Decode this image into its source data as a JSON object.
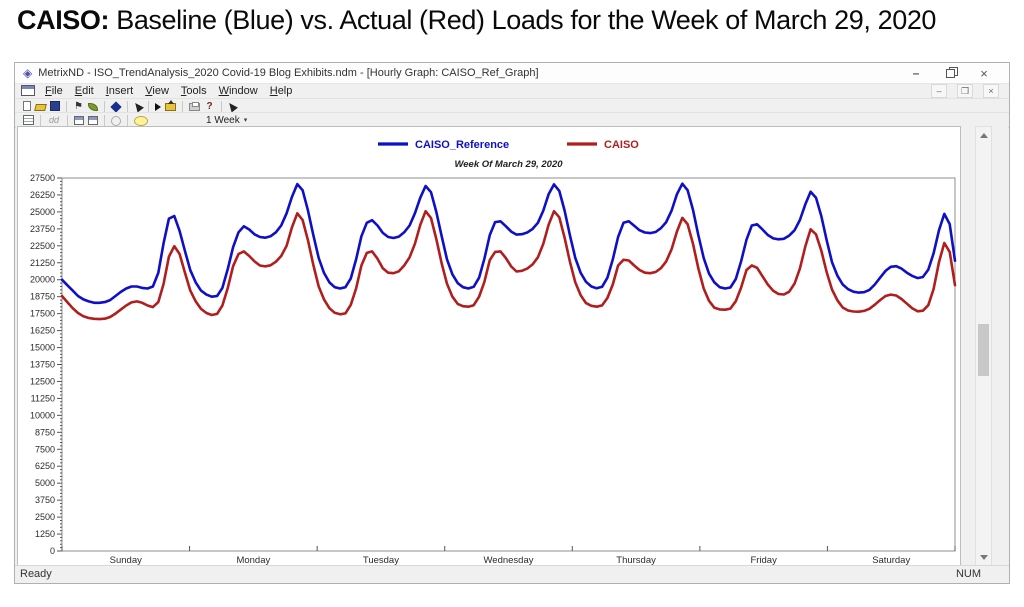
{
  "page_title": {
    "bold": "CAISO:",
    "rest": " Baseline (Blue) vs. Actual (Red) Loads for the Week of March 29, 2020"
  },
  "window": {
    "title": "MetrixND - ISO_TrendAnalysis_2020 Covid-19 Blog Exhibits.ndm - [Hourly Graph: CAISO_Ref_Graph]",
    "controls": {
      "minimize": "–",
      "close": "×"
    },
    "mdi_controls": {
      "minimize": "–",
      "restore": "❐",
      "close": "×"
    }
  },
  "menu": {
    "items": [
      "File",
      "Edit",
      "Insert",
      "View",
      "Tools",
      "Window",
      "Help"
    ]
  },
  "toolbar": {
    "row1": [
      {
        "name": "new-document-icon",
        "type": "new"
      },
      {
        "name": "open-file-icon",
        "type": "open"
      },
      {
        "name": "save-icon",
        "type": "save"
      },
      {
        "type": "sep"
      },
      {
        "name": "flag-icon",
        "type": "flag",
        "glyph": "⚑"
      },
      {
        "name": "run-icon",
        "type": "leaf"
      },
      {
        "type": "sep"
      },
      {
        "name": "data-object-icon",
        "type": "diamond"
      },
      {
        "type": "sep"
      },
      {
        "name": "pointer-tool-icon",
        "type": "cursor"
      },
      {
        "type": "sep"
      },
      {
        "name": "run-forecast-icon",
        "type": "play"
      },
      {
        "name": "export-icon",
        "type": "export"
      },
      {
        "type": "sep"
      },
      {
        "name": "print-icon",
        "type": "print"
      },
      {
        "name": "help-icon",
        "type": "help",
        "glyph": "?"
      },
      {
        "type": "sep"
      },
      {
        "name": "select-tool-icon",
        "type": "cursor"
      }
    ],
    "row2": [
      {
        "name": "grid-view-icon",
        "type": "grid"
      },
      {
        "type": "sep"
      },
      {
        "name": "data-dd-icon",
        "type": "dd",
        "glyph": "dd"
      },
      {
        "type": "sep"
      },
      {
        "name": "window-view-icon",
        "type": "win"
      },
      {
        "name": "window-view2-icon",
        "type": "win"
      },
      {
        "type": "sep"
      },
      {
        "name": "refresh-icon",
        "type": "circle"
      },
      {
        "type": "sep"
      },
      {
        "name": "comment-icon",
        "type": "bubble"
      }
    ],
    "week_selector": "1 Week"
  },
  "status_bar": {
    "left": "Ready",
    "right": "NUM"
  },
  "chart_data": {
    "type": "line",
    "title": "Week Of March 29, 2020",
    "x_labels": [
      "Sunday",
      "Monday",
      "Tuesday",
      "Wednesday",
      "Thursday",
      "Friday",
      "Saturday"
    ],
    "ylim": [
      0,
      27500
    ],
    "ytick_step": 1250,
    "grid": false,
    "legend_position": "top-center",
    "series": [
      {
        "name": "CAISO_Reference",
        "color": "#0f0fc8",
        "values": [
          20000,
          19600,
          19200,
          18800,
          18550,
          18400,
          18300,
          18300,
          18350,
          18500,
          18800,
          19100,
          19350,
          19500,
          19500,
          19400,
          19350,
          19500,
          20500,
          22700,
          24500,
          24700,
          23600,
          22100,
          20700,
          19800,
          19200,
          18900,
          18750,
          18800,
          19400,
          20800,
          22400,
          23500,
          23940,
          23700,
          23350,
          23150,
          23100,
          23200,
          23500,
          24000,
          24900,
          26100,
          27050,
          26600,
          25100,
          23300,
          21600,
          20500,
          19800,
          19450,
          19350,
          19450,
          20100,
          21500,
          23200,
          24200,
          24390,
          24000,
          23450,
          23150,
          23080,
          23180,
          23500,
          24000,
          24900,
          26050,
          26910,
          26450,
          25000,
          23200,
          21500,
          20400,
          19750,
          19450,
          19350,
          19480,
          20150,
          21550,
          23300,
          24250,
          24310,
          23950,
          23550,
          23330,
          23360,
          23480,
          23750,
          24200,
          25100,
          26300,
          27030,
          26550,
          25100,
          23250,
          21600,
          20500,
          19850,
          19500,
          19370,
          19480,
          20150,
          21500,
          23150,
          24200,
          24310,
          23980,
          23650,
          23480,
          23440,
          23520,
          23800,
          24250,
          25100,
          26300,
          27080,
          26600,
          25150,
          23300,
          21600,
          20450,
          19800,
          19450,
          19350,
          19430,
          20050,
          21350,
          22950,
          24000,
          24090,
          23700,
          23300,
          23050,
          22980,
          23020,
          23250,
          23650,
          24400,
          25550,
          26490,
          26050,
          24700,
          22900,
          21300,
          20300,
          19650,
          19300,
          19120,
          19050,
          19080,
          19250,
          19650,
          20150,
          20650,
          20950,
          21000,
          20820,
          20520,
          20280,
          20120,
          20200,
          20750,
          21950,
          23650,
          24850,
          24100,
          21400
        ]
      },
      {
        "name": "CAISO",
        "color": "#b01e1e",
        "values": [
          18800,
          18350,
          17900,
          17550,
          17300,
          17180,
          17120,
          17100,
          17130,
          17250,
          17500,
          17800,
          18100,
          18330,
          18400,
          18300,
          18100,
          17980,
          18350,
          19700,
          21700,
          22470,
          21900,
          20500,
          19200,
          18400,
          17850,
          17550,
          17400,
          17480,
          18100,
          19400,
          21000,
          21900,
          22090,
          21750,
          21350,
          21050,
          20980,
          21060,
          21330,
          21750,
          22500,
          23850,
          24900,
          24400,
          22900,
          21100,
          19500,
          18550,
          17900,
          17560,
          17450,
          17520,
          18150,
          19350,
          21050,
          21980,
          22090,
          21550,
          20850,
          20520,
          20480,
          20620,
          21050,
          21650,
          22650,
          24050,
          25050,
          24550,
          23000,
          21200,
          19700,
          18750,
          18220,
          18050,
          18010,
          18120,
          18750,
          19850,
          21450,
          22050,
          22090,
          21600,
          20980,
          20610,
          20660,
          20820,
          21130,
          21650,
          22650,
          24050,
          25050,
          24600,
          23100,
          21300,
          19800,
          18850,
          18280,
          18080,
          18010,
          18110,
          18650,
          19650,
          21050,
          21470,
          21420,
          21050,
          20720,
          20520,
          20480,
          20570,
          20850,
          21350,
          22250,
          23550,
          24560,
          24100,
          22650,
          20850,
          19350,
          18450,
          17930,
          17810,
          17790,
          17870,
          18420,
          19420,
          20720,
          21050,
          20880,
          20250,
          19650,
          19180,
          18950,
          18910,
          19120,
          19720,
          20820,
          22450,
          23720,
          23350,
          22150,
          20550,
          19280,
          18480,
          17950,
          17730,
          17660,
          17640,
          17700,
          17860,
          18160,
          18500,
          18800,
          18900,
          18840,
          18580,
          18230,
          17900,
          17670,
          17720,
          18120,
          19320,
          21300,
          22710,
          22050,
          19600
        ]
      }
    ]
  }
}
